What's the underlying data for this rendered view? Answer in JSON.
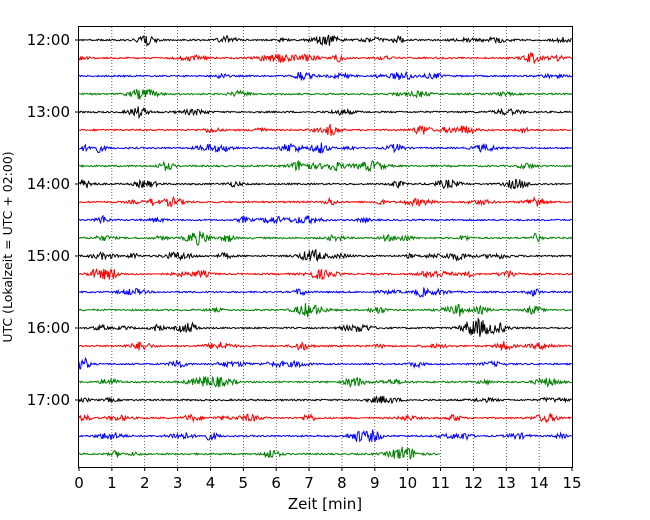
{
  "chart_data": {
    "type": "line",
    "xlabel": "Zeit  [min]",
    "ylabel": "UTC (Lokalzeit = UTC + 02:00)",
    "xlim": [
      0,
      15
    ],
    "x_ticks": [
      "0",
      "1",
      "2",
      "3",
      "4",
      "5",
      "6",
      "7",
      "8",
      "9",
      "10",
      "11",
      "12",
      "13",
      "14",
      "15"
    ],
    "y_ticks": [
      "12:00",
      "13:00",
      "14:00",
      "15:00",
      "16:00",
      "17:00"
    ],
    "grid": "vertical dotted",
    "trace_count": 24,
    "trace_interval_min": 15,
    "first_trace": "12:00",
    "last_trace_end_min": 11,
    "colors": [
      "#000000",
      "#ff0000",
      "#0000ff",
      "#008000"
    ]
  }
}
